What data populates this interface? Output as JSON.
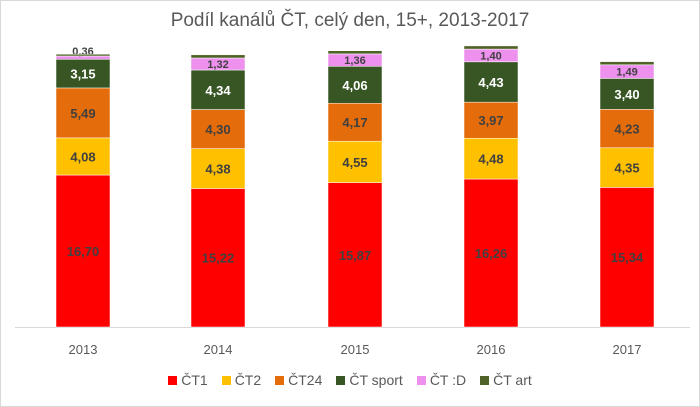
{
  "chart_data": {
    "type": "stacked-bar",
    "title": "Podíl kanálů ČT, celý den, 15+, 2013-2017",
    "xlabel": "",
    "ylabel": "",
    "categories": [
      "2013",
      "2014",
      "2015",
      "2016",
      "2017"
    ],
    "ylim": [
      0,
      32
    ],
    "grid": false,
    "legend_position": "bottom",
    "series": [
      {
        "name": "ČT1",
        "color": "#ff0000",
        "label_color": "#404040",
        "values": [
          16.7,
          15.22,
          15.87,
          16.26,
          15.34
        ],
        "labels": [
          "16,70",
          "15,22",
          "15,87",
          "16,26",
          "15,34"
        ]
      },
      {
        "name": "ČT2",
        "color": "#ffc000",
        "label_color": "#404040",
        "values": [
          4.08,
          4.38,
          4.55,
          4.48,
          4.35
        ],
        "labels": [
          "4,08",
          "4,38",
          "4,55",
          "4,48",
          "4,35"
        ]
      },
      {
        "name": "ČT24",
        "color": "#e46c0a",
        "label_color": "#404040",
        "values": [
          5.49,
          4.3,
          4.17,
          3.97,
          4.23
        ],
        "labels": [
          "5,49",
          "4,30",
          "4,17",
          "3,97",
          "4,23"
        ]
      },
      {
        "name": "ČT sport",
        "color": "#375623",
        "label_color": "#ffffff",
        "values": [
          3.15,
          4.34,
          4.06,
          4.43,
          3.4
        ],
        "labels": [
          "3,15",
          "4,34",
          "4,06",
          "4,43",
          "3,40"
        ]
      },
      {
        "name": "ČT :D",
        "color": "#ee90ee",
        "label_color": "#404040",
        "values": [
          0.36,
          1.32,
          1.36,
          1.4,
          1.49
        ],
        "labels": [
          "0,36",
          "1,32",
          "1,36",
          "1,40",
          "1,49"
        ]
      },
      {
        "name": "ČT art",
        "color": "#4f6228",
        "label_color": "#404040",
        "values": [
          0.2,
          0.35,
          0.35,
          0.35,
          0.35
        ],
        "labels": []
      }
    ]
  }
}
